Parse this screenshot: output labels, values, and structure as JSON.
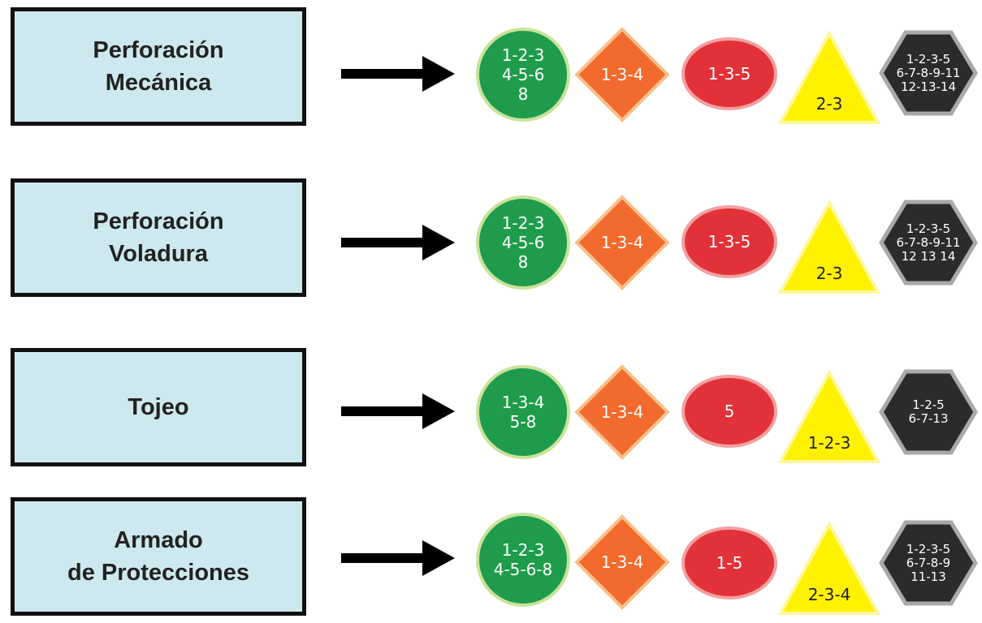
{
  "colors": {
    "box_fill": "#cde8ee",
    "circle_fill": "#1e9c4b",
    "circle_stroke": "#c8e39a",
    "diamond_fill": "#f26a2e",
    "diamond_stroke": "#f7c08a",
    "ellipse_fill": "#e23138",
    "ellipse_stroke": "#f2a0a0",
    "triangle_fill": "#fff200",
    "triangle_stroke": "#fff7a0",
    "hexagon_fill": "#2b2b2b",
    "hexagon_stroke": "#a9a9a9"
  },
  "rows": [
    {
      "activity": "Perforación\nMecánica",
      "circle": "1-2-3\n4-5-6\n8",
      "diamond": "1-3-4",
      "ellipse": "1-3-5",
      "triangle": "2-3",
      "hexagon": "1-2-3-5\n6-7-8-9-11\n12-13-14"
    },
    {
      "activity": "Perforación\nVoladura",
      "circle": "1-2-3\n4-5-6\n8",
      "diamond": "1-3-4",
      "ellipse": "1-3-5",
      "triangle": "2-3",
      "hexagon": "1-2-3-5\n6-7-8-9-11\n12 13 14"
    },
    {
      "activity": "Tojeo",
      "circle": "1-3-4\n5-8",
      "diamond": "1-3-4",
      "ellipse": "5",
      "triangle": "1-2-3",
      "hexagon": "1-2-5\n6-7-13"
    },
    {
      "activity": "Armado\nde Protecciones",
      "circle": "1-2-3\n4-5-6-8",
      "diamond": "1-3-4",
      "ellipse": "1-5",
      "triangle": "2-3-4",
      "hexagon": "1-2-3-5\n6-7-8-9\n11-13"
    }
  ]
}
